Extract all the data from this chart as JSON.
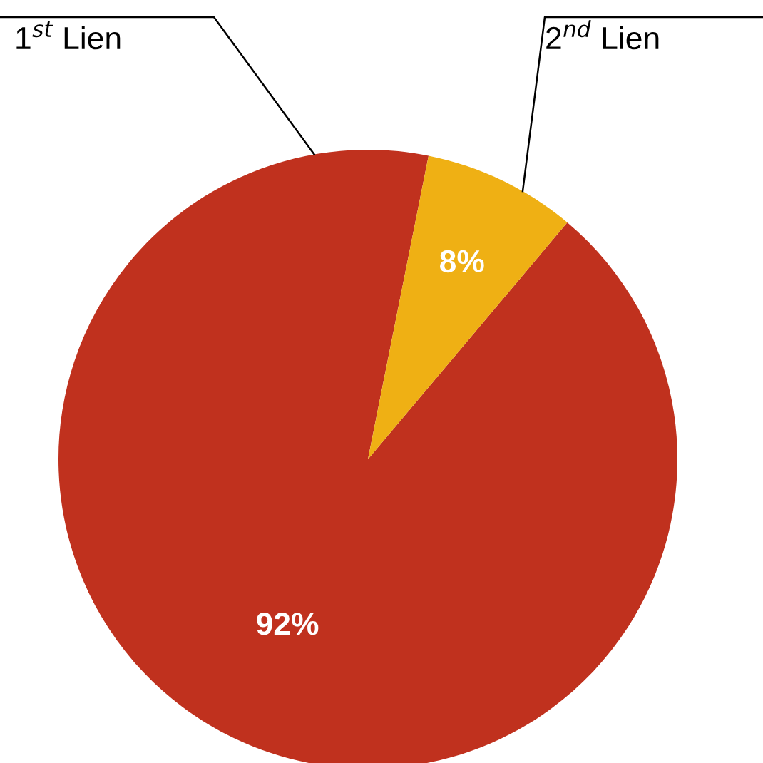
{
  "chart_data": {
    "type": "pie",
    "categories": [
      "1$^{st}$ Lien",
      "2$^{nd}$ Lien"
    ],
    "values": [
      92,
      8
    ],
    "colors": [
      "#c0311e",
      "#efb014"
    ],
    "value_labels": [
      "92%",
      "8%"
    ],
    "legend": false
  }
}
